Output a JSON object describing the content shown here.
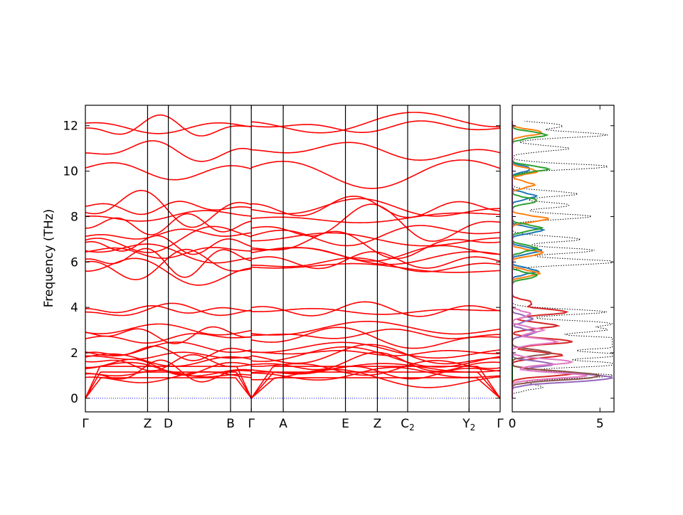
{
  "chart_data": [
    {
      "type": "line",
      "title": "",
      "xlabel": "",
      "ylabel": "Frequency (THz)",
      "ylim": [
        -0.6,
        12.9
      ],
      "yticks": [
        0,
        2,
        4,
        6,
        8,
        10,
        12
      ],
      "high_symmetry_points": [
        {
          "label": "Γ",
          "sub": "",
          "pos": 0.0
        },
        {
          "label": "Z",
          "sub": "",
          "pos": 0.15
        },
        {
          "label": "D",
          "sub": "",
          "pos": 0.2
        },
        {
          "label": "B",
          "sub": "",
          "pos": 0.35
        },
        {
          "label": "Γ",
          "sub": "",
          "pos": 0.4
        },
        {
          "label": "A",
          "sub": "",
          "pos": 0.477
        },
        {
          "label": "E",
          "sub": "",
          "pos": 0.627
        },
        {
          "label": "Z",
          "sub": "",
          "pos": 0.704
        },
        {
          "label": "C",
          "sub": "2",
          "pos": 0.777
        },
        {
          "label": "Y",
          "sub": "2",
          "pos": 0.925
        },
        {
          "label": "Γ",
          "sub": "",
          "pos": 1.0
        }
      ],
      "series": [
        {
          "name": "",
          "color": "#ff0000",
          "values_gamma_anchors": [
            0,
            0,
            0,
            0.9,
            1.05,
            1.15,
            1.25,
            1.4,
            1.55,
            1.75,
            1.85,
            2.0,
            2.1,
            2.65,
            2.8,
            2.95,
            3.85,
            3.9,
            5.7,
            5.85,
            6.05,
            6.35,
            6.45,
            6.75,
            7.0,
            7.2,
            7.65,
            8.0,
            8.35,
            8.4,
            10.1,
            10.85,
            11.95,
            12.05
          ]
        }
      ],
      "zero_line_color": "#0000ff"
    },
    {
      "type": "line",
      "title": "",
      "xlabel": "",
      "ylabel": "",
      "xlim": [
        0,
        5.8
      ],
      "xticks": [
        0,
        5
      ],
      "ylim": [
        -0.6,
        12.9
      ],
      "series": [
        {
          "name": "",
          "color": "#000000",
          "style": "dotted",
          "peaks": [
            [
              0.5,
              1.6
            ],
            [
              1.0,
              5.8
            ],
            [
              1.5,
              6.4
            ],
            [
              1.9,
              6.8
            ],
            [
              2.3,
              7.0
            ],
            [
              2.6,
              6.6
            ],
            [
              3.0,
              5.0
            ],
            [
              3.3,
              5.4
            ],
            [
              3.8,
              5.2
            ],
            [
              6.0,
              6.0
            ],
            [
              6.5,
              4.6
            ],
            [
              7.0,
              3.8
            ],
            [
              8.0,
              4.4
            ],
            [
              8.5,
              3.2
            ],
            [
              9.0,
              3.6
            ],
            [
              10.2,
              5.4
            ],
            [
              11.0,
              3.1
            ],
            [
              11.6,
              5.3
            ],
            [
              12.0,
              2.8
            ]
          ]
        },
        {
          "name": "",
          "color": "#1f77b4",
          "style": "solid",
          "peaks": [
            [
              5.6,
              1.3
            ],
            [
              6.5,
              1.5
            ],
            [
              7.4,
              1.6
            ],
            [
              8.9,
              1.2
            ],
            [
              10.1,
              0.9
            ]
          ]
        },
        {
          "name": "",
          "color": "#ff7f0e",
          "style": "solid",
          "peaks": [
            [
              5.5,
              1.4
            ],
            [
              6.4,
              1.6
            ],
            [
              7.9,
              1.9
            ],
            [
              9.4,
              1.1
            ],
            [
              10.0,
              1.3
            ],
            [
              11.7,
              1.6
            ]
          ]
        },
        {
          "name": "",
          "color": "#2ca02c",
          "style": "solid",
          "peaks": [
            [
              5.4,
              1.3
            ],
            [
              6.6,
              1.3
            ],
            [
              7.5,
              1.5
            ],
            [
              8.7,
              1.3
            ],
            [
              10.1,
              1.9
            ],
            [
              11.6,
              1.8
            ]
          ]
        },
        {
          "name": "",
          "color": "#d62728",
          "style": "solid",
          "peaks": [
            [
              1.1,
              3.5
            ],
            [
              1.9,
              2.7
            ],
            [
              2.5,
              3.3
            ],
            [
              3.2,
              2.4
            ],
            [
              3.8,
              3.0
            ],
            [
              4.2,
              1.0
            ]
          ]
        },
        {
          "name": "",
          "color": "#9467bd",
          "style": "solid",
          "peaks": [
            [
              0.8,
              3.8
            ],
            [
              1.0,
              4.0
            ],
            [
              1.5,
              2.2
            ],
            [
              2.9,
              1.2
            ],
            [
              3.5,
              1.0
            ]
          ]
        },
        {
          "name": "",
          "color": "#8c564b",
          "style": "solid",
          "peaks": [
            [
              0.9,
              3.6
            ],
            [
              1.1,
              3.2
            ],
            [
              2.0,
              2.1
            ]
          ]
        },
        {
          "name": "",
          "color": "#e377c2",
          "style": "solid",
          "peaks": [
            [
              1.0,
              4.1
            ],
            [
              1.6,
              3.3
            ],
            [
              2.5,
              2.4
            ],
            [
              3.0,
              1.6
            ],
            [
              3.7,
              0.9
            ]
          ]
        }
      ]
    }
  ]
}
